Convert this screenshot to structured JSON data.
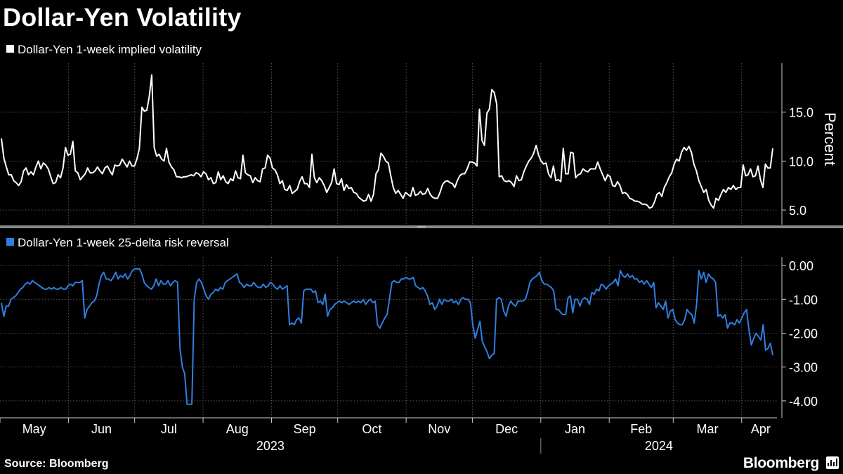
{
  "title": "Dollar-Yen Volatility",
  "source_label": "Source: Bloomberg",
  "brand": "Bloomberg",
  "colors": {
    "background": "#000000",
    "vol_line": "#ffffff",
    "rr_line": "#2f7fe0",
    "grid": "#555555"
  },
  "chart_data": [
    {
      "type": "line",
      "title": "Dollar-Yen 1-week implied volatility",
      "legend": "Dollar-Yen 1-week implied volatility",
      "ylabel": "Percent",
      "ylim": [
        3.5,
        20.0
      ],
      "yticks": [
        5.0,
        10.0,
        15.0
      ],
      "ytick_labels": [
        "5.0",
        "10.0",
        "15.0"
      ],
      "x_start": "2023-05-01",
      "x_end": "2024-04-17",
      "values": [
        12.3,
        10.3,
        9.4,
        8.6,
        8.6,
        8.0,
        7.8,
        7.5,
        7.9,
        9.0,
        9.3,
        8.6,
        8.9,
        8.6,
        9.4,
        10.0,
        9.2,
        9.8,
        9.6,
        9.2,
        8.4,
        7.7,
        7.8,
        8.6,
        8.3,
        9.3,
        11.4,
        10.6,
        10.7,
        12.0,
        9.0,
        8.8,
        8.1,
        8.4,
        8.7,
        9.3,
        8.8,
        8.8,
        9.0,
        9.4,
        9.0,
        8.7,
        9.3,
        9.5,
        9.0,
        8.6,
        9.6,
        9.5,
        9.6,
        10.2,
        9.8,
        9.4,
        10.0,
        9.5,
        9.5,
        10.2,
        11.3,
        15.5,
        15.1,
        15.2,
        16.6,
        18.8,
        11.4,
        10.5,
        10.7,
        10.2,
        10.0,
        11.3,
        9.9,
        9.4,
        9.1,
        8.4,
        8.4,
        8.3,
        8.4,
        8.4,
        8.5,
        8.6,
        8.5,
        8.8,
        8.7,
        8.4,
        8.9,
        8.7,
        8.1,
        8.3,
        7.7,
        7.8,
        8.9,
        8.1,
        8.5,
        7.9,
        7.7,
        8.2,
        8.0,
        9.0,
        8.3,
        8.2,
        10.6,
        8.8,
        8.6,
        8.5,
        7.8,
        8.3,
        8.0,
        7.9,
        9.2,
        9.3,
        10.6,
        10.3,
        9.3,
        9.1,
        8.6,
        7.7,
        8.0,
        7.1,
        7.0,
        7.5,
        6.7,
        6.9,
        7.1,
        7.9,
        8.4,
        7.7,
        7.7,
        7.3,
        10.7,
        8.3,
        7.8,
        8.3,
        8.0,
        7.5,
        6.8,
        7.3,
        7.8,
        9.2,
        7.7,
        7.6,
        8.2,
        7.0,
        7.6,
        7.2,
        7.3,
        6.8,
        6.7,
        6.3,
        6.1,
        5.9,
        6.0,
        6.6,
        5.9,
        6.6,
        8.7,
        9.1,
        10.8,
        10.5,
        10.0,
        9.8,
        8.5,
        7.3,
        6.7,
        7.0,
        6.6,
        6.2,
        6.8,
        6.6,
        6.4,
        7.3,
        6.5,
        6.6,
        6.9,
        6.6,
        6.7,
        7.2,
        6.6,
        6.3,
        6.2,
        6.2,
        6.8,
        7.6,
        7.9,
        8.0,
        7.8,
        7.7,
        7.3,
        8.0,
        8.5,
        8.7,
        8.7,
        9.2,
        9.9,
        9.9,
        9.8,
        9.5,
        15.3,
        12.1,
        11.6,
        14.9,
        15.3,
        17.3,
        17.0,
        15.8,
        8.4,
        8.5,
        8.0,
        7.9,
        8.0,
        7.8,
        7.4,
        8.5,
        8.0,
        8.1,
        8.9,
        9.5,
        10.0,
        10.3,
        10.8,
        11.6,
        10.6,
        10.0,
        9.7,
        9.8,
        8.7,
        8.3,
        9.5,
        8.0,
        8.1,
        7.9,
        11.3,
        8.7,
        8.7,
        10.9,
        10.8,
        8.3,
        8.6,
        8.7,
        9.2,
        9.0,
        8.9,
        9.2,
        9.2,
        9.2,
        9.9,
        9.2,
        8.6,
        8.0,
        8.6,
        8.4,
        7.5,
        7.4,
        7.9,
        7.5,
        6.7,
        6.8,
        6.6,
        6.2,
        6.1,
        5.9,
        5.9,
        5.8,
        5.6,
        5.6,
        5.5,
        5.2,
        5.3,
        5.8,
        6.6,
        6.8,
        6.4,
        7.3,
        7.8,
        8.4,
        8.8,
        9.7,
        10.2,
        10.0,
        10.9,
        11.4,
        11.1,
        11.5,
        10.9,
        9.7,
        9.0,
        8.0,
        7.4,
        6.8,
        7.1,
        6.0,
        5.5,
        5.2,
        6.2,
        6.0,
        6.6,
        7.1,
        6.8,
        7.3,
        7.1,
        7.5,
        7.1,
        7.3,
        7.3,
        9.6,
        8.5,
        8.6,
        9.2,
        8.4,
        8.5,
        9.5,
        8.1,
        7.3,
        9.7,
        9.3,
        9.3,
        11.3
      ]
    },
    {
      "type": "line",
      "title": "Dollar-Yen 1-week 25-delta risk reversal",
      "legend": "Dollar-Yen 1-week 25-delta risk reversal",
      "ylim": [
        -4.5,
        0.25
      ],
      "yticks": [
        0.0,
        -1.0,
        -2.0,
        -3.0,
        -4.0
      ],
      "ytick_labels": [
        "0.00",
        "-1.00",
        "-2.00",
        "-3.00",
        "-4.00"
      ],
      "x_start": "2023-05-01",
      "x_end": "2024-04-17",
      "values": [
        -1.1,
        -1.5,
        -1.2,
        -1.2,
        -1.0,
        -0.95,
        -0.9,
        -0.8,
        -0.7,
        -0.65,
        -0.55,
        -0.5,
        -0.55,
        -0.45,
        -0.5,
        -0.55,
        -0.6,
        -0.65,
        -0.7,
        -0.7,
        -0.65,
        -0.7,
        -0.65,
        -0.7,
        -0.7,
        -0.65,
        -0.7,
        -0.7,
        -0.6,
        -0.55,
        -0.6,
        -0.5,
        -0.5,
        -0.5,
        -0.45,
        -1.55,
        -1.3,
        -1.2,
        -1.1,
        -1.05,
        -0.9,
        -0.55,
        -0.3,
        -0.2,
        -0.4,
        -0.4,
        -0.45,
        -0.35,
        -0.2,
        -0.4,
        -0.3,
        -0.35,
        -0.25,
        -0.4,
        -0.3,
        -0.15,
        -0.1,
        -0.1,
        -0.1,
        -0.25,
        -0.5,
        -0.6,
        -0.65,
        -0.7,
        -0.6,
        -0.4,
        -0.6,
        -0.45,
        -0.55,
        -0.55,
        -0.45,
        -0.6,
        -0.5,
        -0.45,
        -0.5,
        -2.45,
        -3.0,
        -3.2,
        -4.1,
        -4.1,
        -4.1,
        -1.0,
        -0.5,
        -0.4,
        -0.5,
        -0.7,
        -0.9,
        -1.0,
        -0.85,
        -0.8,
        -0.7,
        -0.75,
        -0.65,
        -0.7,
        -0.5,
        -0.45,
        -0.4,
        -0.35,
        -0.3,
        -0.25,
        -0.5,
        -0.55,
        -0.65,
        -0.55,
        -0.6,
        -0.6,
        -0.5,
        -0.6,
        -0.65,
        -0.65,
        -0.55,
        -0.65,
        -0.6,
        -0.5,
        -0.55,
        -0.65,
        -0.7,
        -0.6,
        -0.7,
        -0.65,
        -0.6,
        -1.75,
        -1.7,
        -1.75,
        -1.6,
        -1.55,
        -1.7,
        -0.75,
        -0.7,
        -0.7,
        -0.7,
        -0.8,
        -0.75,
        -1.1,
        -1.05,
        -1.15,
        -0.85,
        -1.5,
        -1.3,
        -1.25,
        -1.15,
        -1.1,
        -1.05,
        -1.1,
        -1.05,
        -1.1,
        -1.15,
        -1.1,
        -1.05,
        -1.1,
        -1.05,
        -1.1,
        -1.0,
        -1.15,
        -1.05,
        -1.0,
        -1.1,
        -1.05,
        -1.75,
        -1.85,
        -1.7,
        -1.55,
        -1.45,
        -1.0,
        -0.5,
        -0.45,
        -0.5,
        -0.5,
        -0.4,
        -0.4,
        -0.35,
        -0.4,
        -0.4,
        -0.35,
        -0.6,
        -0.65,
        -0.7,
        -0.65,
        -0.75,
        -0.9,
        -1.15,
        -1.1,
        -1.3,
        -1.2,
        -1.0,
        -1.15,
        -1.0,
        -1.05,
        -1.05,
        -1.0,
        -1.1,
        -1.05,
        -1.15,
        -1.0,
        -0.95,
        -1.0,
        -1.0,
        -1.1,
        -1.75,
        -2.15,
        -1.9,
        -1.65,
        -2.25,
        -2.4,
        -2.55,
        -2.75,
        -2.65,
        -2.6,
        -1.0,
        -0.95,
        -1.0,
        -1.35,
        -1.5,
        -1.2,
        -1.05,
        -1.15,
        -1.2,
        -1.05,
        -1.05,
        -1.05,
        -1.0,
        -0.8,
        -0.5,
        -0.4,
        -0.35,
        -0.3,
        -0.2,
        -0.45,
        -0.55,
        -0.55,
        -0.6,
        -0.65,
        -0.75,
        -1.3,
        -1.3,
        -1.4,
        -1.45,
        -1.45,
        -0.95,
        -0.9,
        -1.4,
        -1.0,
        -1.0,
        -1.2,
        -1.0,
        -0.95,
        -1.0,
        -1.15,
        -0.8,
        -0.85,
        -0.7,
        -0.75,
        -0.55,
        -0.6,
        -0.7,
        -0.6,
        -0.55,
        -0.5,
        -0.4,
        -0.6,
        -0.15,
        -0.3,
        -0.35,
        -0.25,
        -0.35,
        -0.3,
        -0.4,
        -0.4,
        -0.5,
        -0.45,
        -0.55,
        -0.45,
        -0.55,
        -0.65,
        -0.5,
        -1.25,
        -1.1,
        -1.2,
        -1.3,
        -1.05,
        -1.55,
        -1.35,
        -1.3,
        -1.6,
        -1.7,
        -1.75,
        -1.75,
        -1.6,
        -1.3,
        -1.4,
        -1.45,
        -1.7,
        -1.15,
        -0.15,
        -0.4,
        -0.2,
        -0.5,
        -0.25,
        -0.35,
        -0.4,
        -0.5,
        -1.5,
        -1.45,
        -1.55,
        -1.45,
        -1.85,
        -1.7,
        -1.7,
        -1.75,
        -1.6,
        -1.7,
        -1.55,
        -1.4,
        -1.3,
        -1.9,
        -2.35,
        -2.15,
        -2.0,
        -2.1,
        -2.2,
        -1.75,
        -2.5,
        -2.45,
        -2.3,
        -2.65
      ]
    }
  ],
  "x_axis": {
    "months": [
      "May",
      "Jun",
      "Jul",
      "Aug",
      "Sep",
      "Oct",
      "Nov",
      "Dec",
      "Jan",
      "Feb",
      "Mar",
      "Apr"
    ],
    "years": [
      "2023",
      "2024"
    ]
  }
}
